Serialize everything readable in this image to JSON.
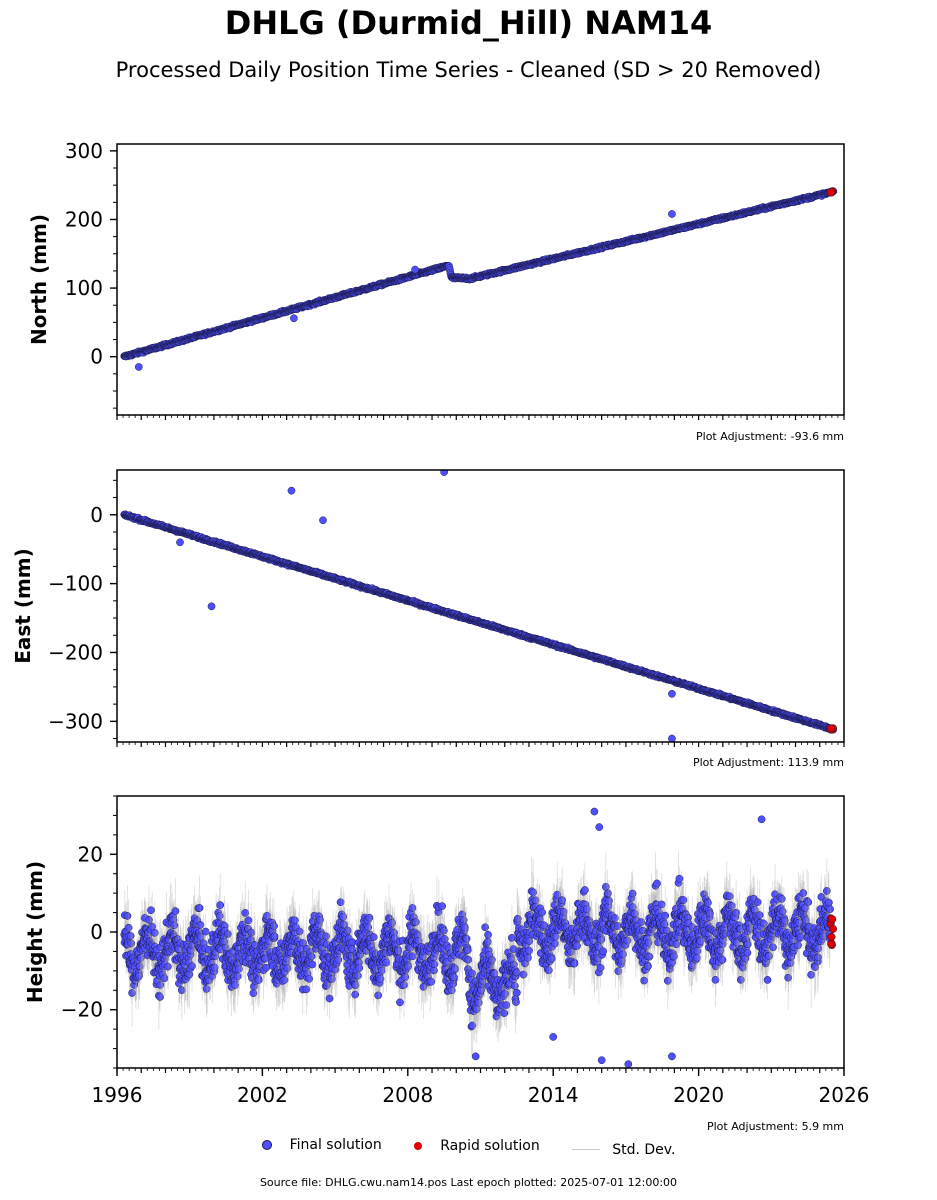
{
  "title": "DHLG (Durmid_Hill) NAM14",
  "subtitle": "Processed Daily Position Time Series - Cleaned (SD > 20 Removed)",
  "legend": {
    "final": "Final solution",
    "rapid": "Rapid solution",
    "std": "Std. Dev."
  },
  "source": "Source file: DHLG.cwu.nam14.pos  Last epoch plotted: 2025-07-01 12:00:00",
  "colors": {
    "final": "#4f4fff",
    "rapid": "#e00000",
    "std": "#9a9a9a",
    "edge": "#1a1a4a"
  },
  "chart_data": [
    {
      "type": "scatter",
      "ylabel": "North (mm)",
      "adjustment": "Plot Adjustment: -93.6 mm",
      "xlim": [
        1996,
        2026
      ],
      "ylim": [
        -85,
        310
      ],
      "yticks": [
        0,
        100,
        200,
        300
      ],
      "ytick_labels": [
        "0",
        "100",
        "200",
        "300"
      ],
      "trend": [
        [
          1996.3,
          0
        ],
        [
          2009.7,
          133
        ],
        [
          2009.8,
          115
        ],
        [
          2010.6,
          114
        ],
        [
          2025.5,
          240
        ]
      ],
      "outliers": [
        [
          1996.9,
          -15
        ],
        [
          2008.3,
          127
        ],
        [
          2018.9,
          208
        ],
        [
          2003.3,
          56
        ]
      ],
      "last_value": 240
    },
    {
      "type": "scatter",
      "ylabel": "East (mm)",
      "adjustment": "Plot Adjustment: 113.9 mm",
      "xlim": [
        1996,
        2026
      ],
      "ylim": [
        -330,
        65
      ],
      "yticks": [
        -300,
        -200,
        -100,
        0
      ],
      "ytick_labels": [
        "−300",
        "−200",
        "−100",
        "0"
      ],
      "trend": [
        [
          1996.3,
          0
        ],
        [
          2025.5,
          -311
        ]
      ],
      "outliers": [
        [
          2003.2,
          35
        ],
        [
          2009.5,
          62
        ],
        [
          2004.5,
          -8
        ],
        [
          1999.9,
          -133
        ],
        [
          2018.9,
          -325
        ],
        [
          2018.9,
          -260
        ],
        [
          1998.6,
          -40
        ]
      ],
      "last_value": -311
    },
    {
      "type": "scatter",
      "ylabel": "Height (mm)",
      "adjustment": "Plot Adjustment: 5.9 mm",
      "xlim": [
        1996,
        2026
      ],
      "ylim": [
        -35,
        35
      ],
      "yticks": [
        -20,
        0,
        20
      ],
      "ytick_labels": [
        "−20",
        "0",
        "20"
      ],
      "xticks": [
        1996,
        2002,
        2008,
        2014,
        2020,
        2026
      ],
      "xtick_labels": [
        "1996",
        "2002",
        "2008",
        "2014",
        "2020",
        "2026"
      ],
      "outliers": [
        [
          2015.7,
          31
        ],
        [
          2022.6,
          29
        ],
        [
          2015.9,
          27
        ],
        [
          2016.0,
          -33
        ],
        [
          2017.1,
          -34
        ],
        [
          2018.9,
          -32
        ],
        [
          2010.8,
          -32
        ],
        [
          2014.0,
          -27
        ]
      ],
      "last_value": 0
    }
  ]
}
